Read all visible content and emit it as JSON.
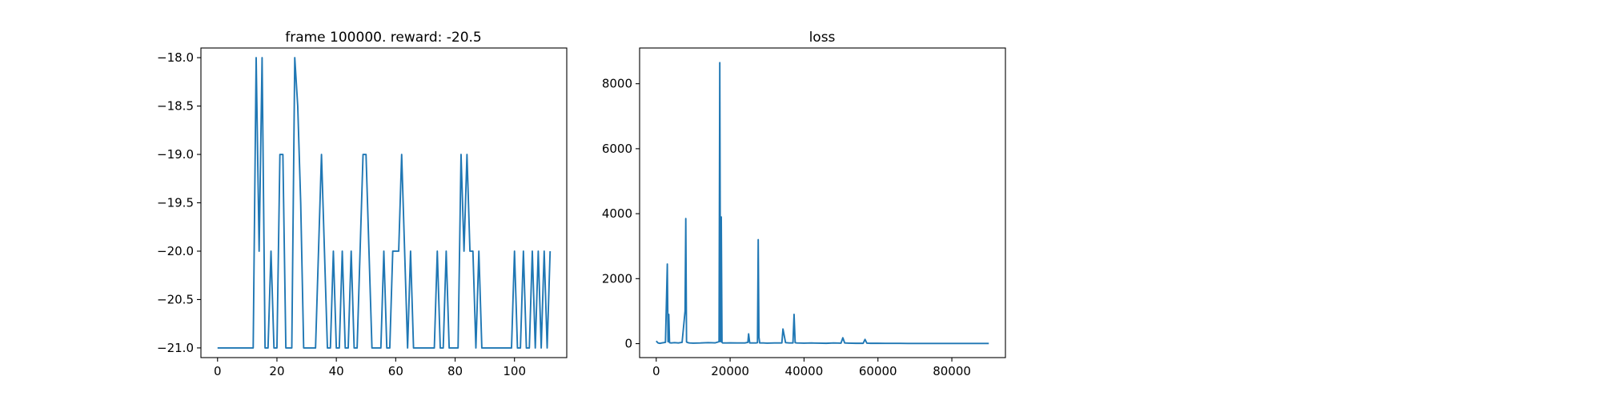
{
  "chart_data": [
    {
      "type": "line",
      "title": "frame 100000. reward: -20.5",
      "xlabel": "",
      "ylabel": "",
      "xlim": [
        -5.6,
        117.6
      ],
      "ylim": [
        -21.1,
        -17.9
      ],
      "xticks": [
        0,
        20,
        40,
        60,
        80,
        100
      ],
      "xtick_labels": [
        "0",
        "20",
        "40",
        "60",
        "80",
        "100"
      ],
      "yticks": [
        -18.0,
        -18.5,
        -19.0,
        -19.5,
        -20.0,
        -20.5,
        -21.0
      ],
      "ytick_labels": [
        "−18.0",
        "−18.5",
        "−19.0",
        "−19.5",
        "−20.0",
        "−20.5",
        "−21.0"
      ],
      "grid": false,
      "color": "#1f77b4",
      "series": [
        {
          "x": [
            0,
            1,
            2,
            3,
            4,
            5,
            6,
            7,
            8,
            9,
            10,
            11,
            12,
            13,
            14,
            15,
            16,
            17,
            18,
            19,
            20,
            21,
            22,
            23,
            24,
            25,
            26,
            27,
            28,
            29,
            30,
            31,
            32,
            33,
            34,
            35,
            36,
            37,
            38,
            39,
            40,
            41,
            42,
            43,
            44,
            45,
            46,
            47,
            48,
            49,
            50,
            51,
            52,
            53,
            54,
            55,
            56,
            57,
            58,
            59,
            60,
            61,
            62,
            63,
            64,
            65,
            66,
            67,
            68,
            69,
            70,
            71,
            72,
            73,
            74,
            75,
            76,
            77,
            78,
            79,
            80,
            81,
            82,
            83,
            84,
            85,
            86,
            87,
            88,
            89,
            90,
            91,
            92,
            93,
            94,
            95,
            96,
            97,
            98,
            99,
            100,
            101,
            102,
            103,
            104,
            105,
            106,
            107,
            108,
            109,
            110,
            111,
            112
          ],
          "y": [
            -21,
            -21,
            -21,
            -21,
            -21,
            -21,
            -21,
            -21,
            -21,
            -21,
            -21,
            -21,
            -21,
            -18,
            -20,
            -18,
            -21,
            -21,
            -20,
            -21,
            -21,
            -19,
            -19,
            -21,
            -21,
            -21,
            -18,
            -18.5,
            -19.5,
            -21,
            -21,
            -21,
            -21,
            -21,
            -20,
            -19,
            -20,
            -21,
            -21,
            -20,
            -21,
            -21,
            -20,
            -21,
            -21,
            -20,
            -21,
            -21,
            -20,
            -19,
            -19,
            -20,
            -21,
            -21,
            -21,
            -21,
            -20,
            -21,
            -21,
            -20,
            -20,
            -20,
            -19,
            -20,
            -21,
            -20,
            -21,
            -21,
            -21,
            -21,
            -21,
            -21,
            -21,
            -21,
            -20,
            -21,
            -21,
            -20,
            -21,
            -21,
            -21,
            -21,
            -19,
            -20,
            -19,
            -20,
            -20,
            -21,
            -20,
            -21,
            -21,
            -21,
            -21,
            -21,
            -21,
            -21,
            -21,
            -21,
            -21,
            -21,
            -20,
            -21,
            -21,
            -20,
            -21,
            -21,
            -20,
            -21,
            -20,
            -21,
            -20,
            -21,
            -20
          ]
        }
      ]
    },
    {
      "type": "line",
      "title": "loss",
      "xlabel": "",
      "ylabel": "",
      "xlim": [
        -4500,
        94500
      ],
      "ylim": [
        -430,
        9100
      ],
      "xticks": [
        0,
        20000,
        40000,
        60000,
        80000
      ],
      "xtick_labels": [
        "0",
        "20000",
        "40000",
        "60000",
        "80000"
      ],
      "yticks": [
        0,
        2000,
        4000,
        6000,
        8000
      ],
      "ytick_labels": [
        "0",
        "2000",
        "4000",
        "6000",
        "8000"
      ],
      "grid": false,
      "color": "#1f77b4",
      "series": [
        {
          "x": [
            0,
            500,
            1000,
            1500,
            2000,
            2500,
            3000,
            3200,
            3400,
            3600,
            4000,
            5000,
            6000,
            7000,
            7800,
            8000,
            8200,
            8600,
            9000,
            10000,
            12000,
            14000,
            16000,
            17000,
            17200,
            17400,
            17600,
            17800,
            18000,
            19000,
            20000,
            22000,
            24000,
            24800,
            25000,
            25300,
            26000,
            27000,
            27400,
            27600,
            27800,
            28000,
            28400,
            29000,
            30000,
            32000,
            33500,
            34000,
            34300,
            35000,
            36000,
            37000,
            37300,
            37600,
            38000,
            40000,
            42000,
            44000,
            46000,
            48000,
            50000,
            50500,
            51000,
            52000,
            54000,
            56000,
            56500,
            57000,
            58000,
            60000,
            62000,
            64000,
            66000,
            68000,
            70000,
            72000,
            75000,
            78000,
            81000,
            84000,
            87000,
            90000
          ],
          "y": [
            80,
            20,
            10,
            20,
            30,
            40,
            2450,
            60,
            900,
            30,
            20,
            30,
            20,
            40,
            1000,
            3850,
            50,
            30,
            20,
            15,
            20,
            30,
            25,
            60,
            8650,
            60,
            3900,
            40,
            20,
            20,
            25,
            20,
            20,
            40,
            300,
            20,
            20,
            20,
            30,
            3200,
            200,
            20,
            20,
            20,
            15,
            20,
            20,
            20,
            450,
            30,
            20,
            20,
            900,
            30,
            20,
            15,
            20,
            15,
            10,
            20,
            15,
            180,
            20,
            15,
            10,
            10,
            130,
            15,
            10,
            10,
            8,
            8,
            8,
            6,
            6,
            5,
            5,
            5,
            5,
            5,
            5,
            5
          ]
        }
      ]
    }
  ]
}
